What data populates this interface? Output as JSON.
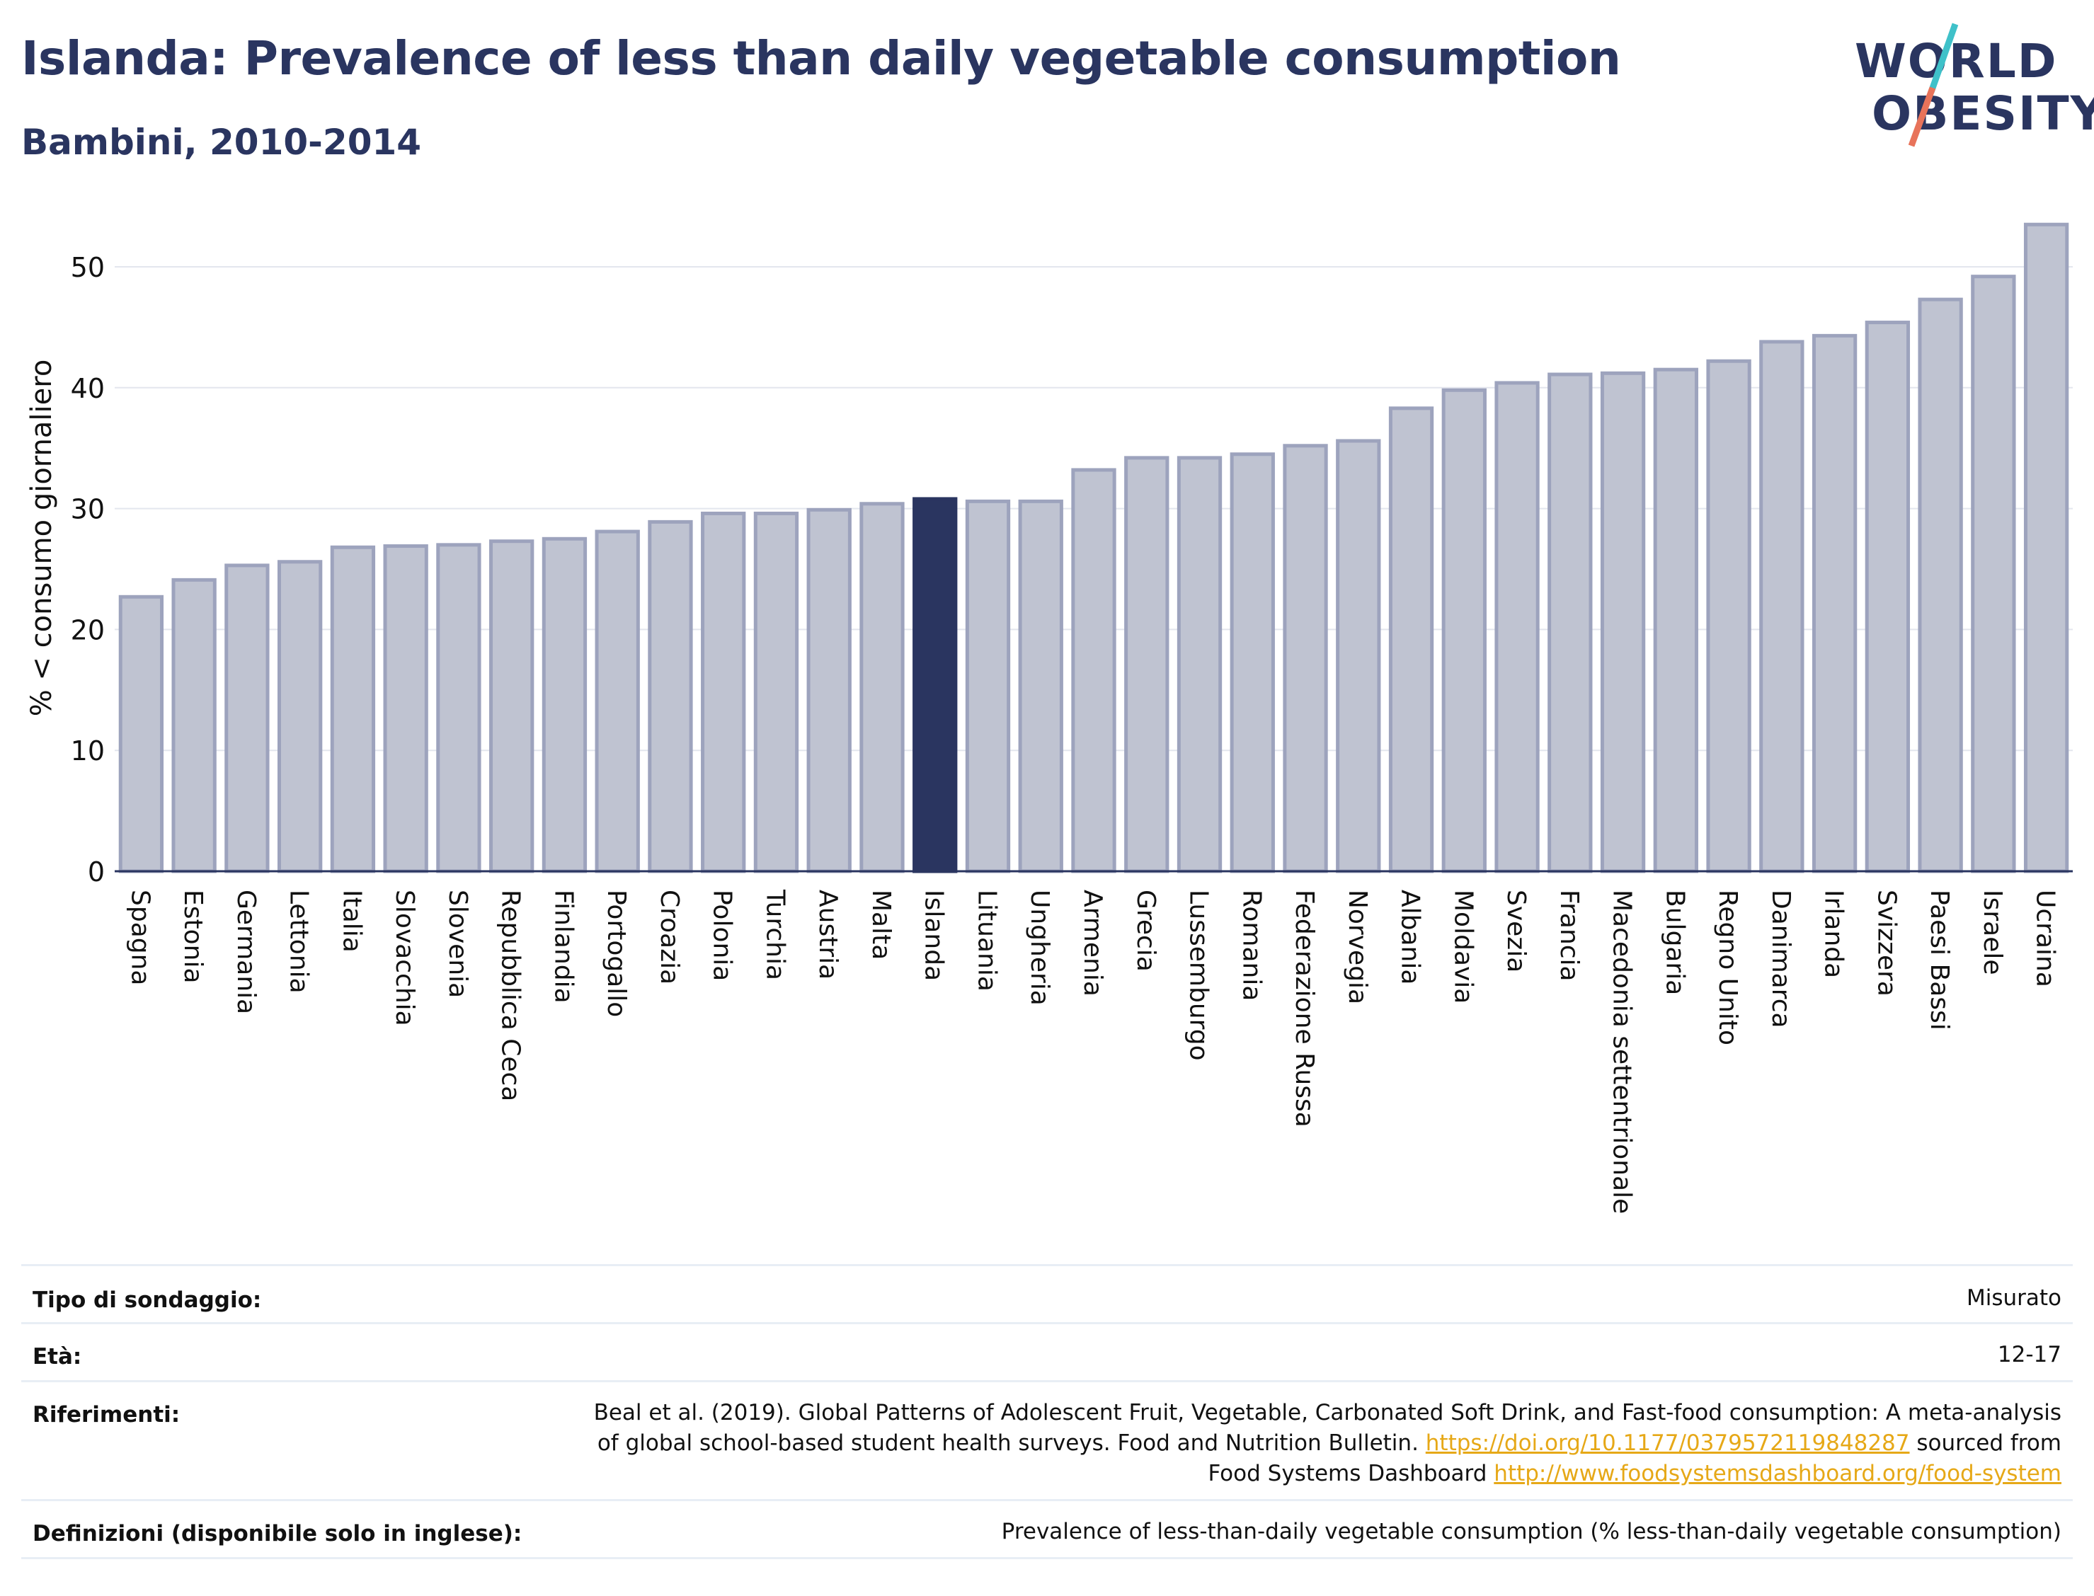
{
  "header": {
    "title": "Islanda: Prevalence of less than daily vegetable consumption",
    "subtitle": "Bambini, 2010-2014"
  },
  "logo": {
    "line1": "WORLD",
    "line2": "OBESITY",
    "accent_teal": "#3fc1c9",
    "accent_coral": "#e8735a"
  },
  "colors": {
    "bar_default": "#bfc3d1",
    "bar_border": "#9da3bd",
    "bar_highlight": "#2a3560",
    "text": "#2a3560",
    "link": "#e6a817"
  },
  "chart_data": {
    "type": "bar",
    "ylabel": "% < consumo giornaliero",
    "ylim": [
      0,
      55
    ],
    "yticks": [
      0,
      10,
      20,
      30,
      40,
      50
    ],
    "grid": true,
    "highlight": "Islanda",
    "categories": [
      "Spagna",
      "Estonia",
      "Germania",
      "Lettonia",
      "Italia",
      "Slovacchia",
      "Slovenia",
      "Repubblica Ceca",
      "Finlandia",
      "Portogallo",
      "Croazia",
      "Polonia",
      "Turchia",
      "Austria",
      "Malta",
      "Islanda",
      "Lituania",
      "Ungheria",
      "Armenia",
      "Grecia",
      "Lussemburgo",
      "Romania",
      "Federazione Russa",
      "Norvegia",
      "Albania",
      "Moldavia",
      "Svezia",
      "Francia",
      "Macedonia settentrionale",
      "Bulgaria",
      "Regno Unito",
      "Danimarca",
      "Irlanda",
      "Svizzera",
      "Paesi Bassi",
      "Israele",
      "Ucraina"
    ],
    "values": [
      22.7,
      24.1,
      25.3,
      25.6,
      26.8,
      26.9,
      27.0,
      27.3,
      27.5,
      28.1,
      28.9,
      29.6,
      29.6,
      29.9,
      30.4,
      30.8,
      30.6,
      30.6,
      33.2,
      34.2,
      34.2,
      34.5,
      35.2,
      35.6,
      38.3,
      39.8,
      40.4,
      41.1,
      41.2,
      41.5,
      42.2,
      43.8,
      44.3,
      45.4,
      47.3,
      49.2,
      53.5
    ]
  },
  "meta": {
    "survey_label": "Tipo di sondaggio:",
    "survey_value": "Misurato",
    "age_label": "Età:",
    "age_value": "12-17",
    "refs_label": "Riferimenti:",
    "refs_line1": "Beal et al. (2019). Global Patterns of Adolescent Fruit, Vegetable, Carbonated Soft Drink, and Fast-food consumption: A meta-analysis",
    "refs_line2_text": "of global school-based student health surveys. Food and Nutrition Bulletin.",
    "refs_line2_link": "https://doi.org/10.1177/0379572119848287",
    "refs_line2_tail": "sourced from",
    "refs_line3_text": "Food Systems Dashboard",
    "refs_line3_link": "http://www.foodsystemsdashboard.org/food-system",
    "defs_label": "Definizioni (disponibile solo in inglese):",
    "defs_value": "Prevalence of less-than-daily vegetable consumption (% less-than-daily vegetable consumption)"
  }
}
